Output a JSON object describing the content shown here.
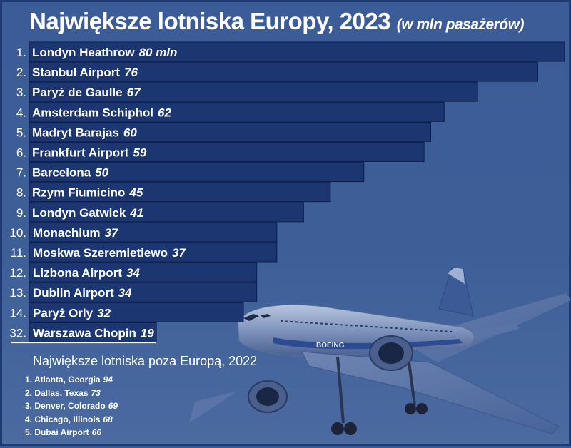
{
  "title": "Największe lotniska Europy, 2023",
  "title_unit": "(w mln pasażerów)",
  "chart_data": {
    "type": "bar",
    "orientation": "horizontal",
    "title": "Największe lotniska Europy, 2023",
    "unit": "w mln pasażerów",
    "xlim": [
      0,
      80
    ],
    "grid": false,
    "bars": [
      {
        "rank": "1.",
        "name": "Londyn Heathrow",
        "value": 80,
        "label": "80 mln"
      },
      {
        "rank": "2.",
        "name": "Stanbuł Airport",
        "value": 76,
        "label": "76"
      },
      {
        "rank": "3.",
        "name": "Paryż de Gaulle",
        "value": 67,
        "label": "67"
      },
      {
        "rank": "4.",
        "name": "Amsterdam Schiphol",
        "value": 62,
        "label": "62"
      },
      {
        "rank": "5.",
        "name": "Madryt Barajas",
        "value": 60,
        "label": "60"
      },
      {
        "rank": "6.",
        "name": "Frankfurt Airport",
        "value": 59,
        "label": "59"
      },
      {
        "rank": "7.",
        "name": "Barcelona",
        "value": 50,
        "label": "50"
      },
      {
        "rank": "8.",
        "name": "Rzym Fiumicino",
        "value": 45,
        "label": "45"
      },
      {
        "rank": "9.",
        "name": "Londyn Gatwick",
        "value": 41,
        "label": "41"
      },
      {
        "rank": "10.",
        "name": "Monachium",
        "value": 37,
        "label": "37"
      },
      {
        "rank": "11.",
        "name": "Moskwa Szeremietiewo",
        "value": 37,
        "label": "37"
      },
      {
        "rank": "12.",
        "name": "Lizbona Airport",
        "value": 34,
        "label": "34"
      },
      {
        "rank": "13.",
        "name": "Dublin Airport",
        "value": 34,
        "label": "34"
      },
      {
        "rank": "14.",
        "name": "Paryż Orly",
        "value": 32,
        "label": "32"
      },
      {
        "rank": "32.",
        "name": "Warszawa Chopin",
        "value": 19,
        "label": "19",
        "underlined": true
      }
    ],
    "colors": {
      "bar": "#1b3670",
      "bar_border": "#0d1f4a",
      "text": "#ffffff"
    }
  },
  "outside_europe": {
    "title": "Największe lotniska poza Europą, 2022",
    "items": [
      {
        "label": "1. Atlanta, Georgia",
        "value": "94"
      },
      {
        "label": "2. Dallas, Texas",
        "value": "73"
      },
      {
        "label": "3. Denver, Colorado",
        "value": "69"
      },
      {
        "label": "4. Chicago, Illinois",
        "value": "68"
      },
      {
        "label": "5. Dubai Airport",
        "value": "66"
      }
    ]
  },
  "decoration": {
    "plane_livery": "BOEING"
  }
}
